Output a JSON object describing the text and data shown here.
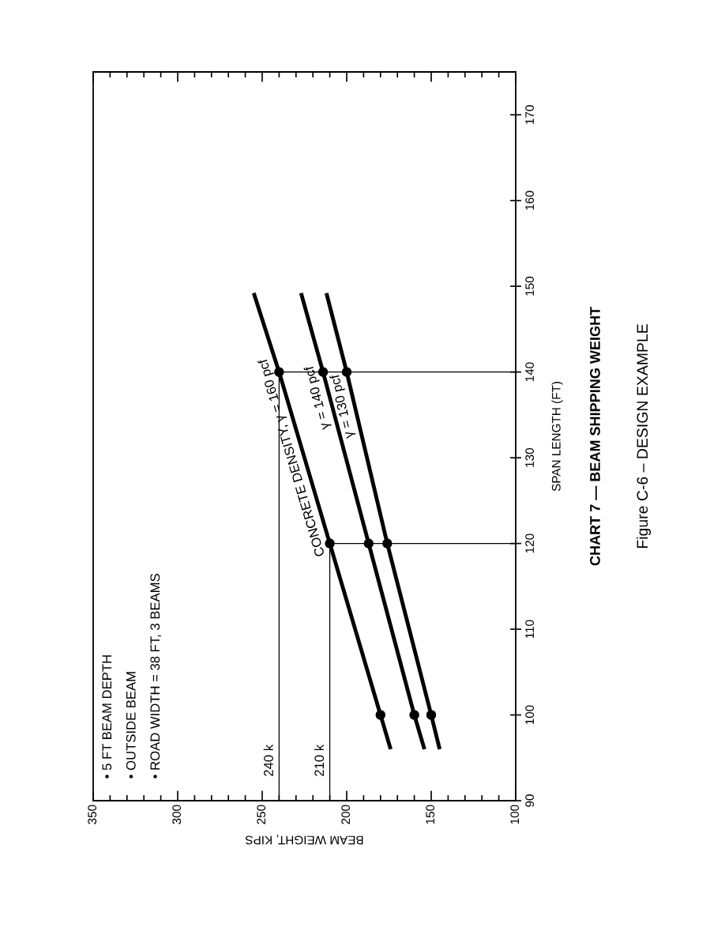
{
  "chart_data": {
    "type": "line",
    "title": "CHART 7 — BEAM SHIPPING WEIGHT",
    "subtitle": "Figure C-6 – DESIGN EXAMPLE",
    "xlabel": "BEAM WEIGHT, KIPS",
    "ylabel": "SPAN LENGTH (FT)",
    "annotations": [
      "• 5 FT BEAM DEPTH",
      "• OUTSIDE BEAM",
      "• ROAD WIDTH = 38 FT, 3 BEAMS"
    ],
    "series": [
      {
        "name": "CONCRETE DENSITY, γ = 160 pcf",
        "color": "#000000",
        "x": [
          174,
          180,
          210,
          240,
          255
        ],
        "values": [
          96,
          100,
          120,
          140,
          149.2
        ]
      },
      {
        "name": "γ = 140 pcf",
        "color": "#000000",
        "x": [
          154,
          160,
          187,
          214,
          227
        ],
        "values": [
          96,
          100,
          120,
          140,
          149.2
        ]
      },
      {
        "name": "γ = 130 pcf",
        "color": "#000000",
        "x": [
          145,
          150,
          176,
          200,
          212
        ],
        "values": [
          96,
          100,
          120,
          140,
          149.2
        ]
      }
    ],
    "ylim": [
      90,
      175
    ],
    "yticks": [
      90,
      100,
      110,
      120,
      130,
      140,
      150,
      160,
      170
    ],
    "xlim": [
      350,
      100
    ],
    "xticks": [
      100,
      {
        "value": 110,
        "label": null
      },
      {
        "value": 120,
        "label": null
      },
      {
        "value": 130,
        "label": null
      },
      {
        "value": 140,
        "label": null
      },
      150,
      {
        "value": 160,
        "label": null
      },
      {
        "value": 170,
        "label": null
      },
      {
        "value": 180,
        "label": null
      },
      {
        "value": 190,
        "label": null
      },
      200,
      {
        "value": 210,
        "label": null
      },
      {
        "value": 220,
        "label": null
      },
      {
        "value": 230,
        "label": null
      },
      {
        "value": 240,
        "label": null
      },
      250,
      {
        "value": 260,
        "label": null
      },
      {
        "value": 270,
        "label": null
      },
      {
        "value": 280,
        "label": null
      },
      {
        "value": 290,
        "label": null
      },
      300,
      {
        "value": 310,
        "label": null
      },
      {
        "value": 320,
        "label": null
      },
      {
        "value": 330,
        "label": null
      },
      {
        "value": 340,
        "label": null
      },
      350
    ],
    "ref_lines": [
      {
        "axis": "x",
        "value": 240,
        "label": "240 k",
        "color": "#000000"
      },
      {
        "axis": "x",
        "value": 210,
        "label": "210 k",
        "color": "#000000"
      },
      {
        "axis": "y",
        "value": 120,
        "color": "#000000"
      },
      {
        "axis": "y",
        "value": 140,
        "color": "#000000"
      }
    ],
    "marker": "circle",
    "line_style": "solid",
    "grid": false,
    "legend": false
  }
}
